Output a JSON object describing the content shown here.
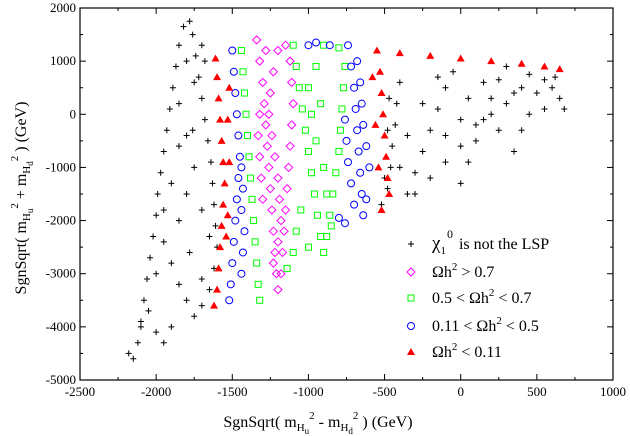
{
  "chart_data": {
    "type": "scatter",
    "title": "",
    "xlabel": {
      "prefix": "SgnSqrt( m",
      "sub1": "H",
      "subsub1": "u",
      "sup1": "2",
      "mid": " - m",
      "sub2": "H",
      "subsub2": "d",
      "sup2": "2",
      "suffix": " ) (GeV)"
    },
    "ylabel": {
      "prefix": "SgnSqrt( m",
      "sub1": "H",
      "subsub1": "u",
      "sup1": "2",
      "mid": " + m",
      "sub2": "H",
      "subsub2": "d",
      "sup2": "2",
      "suffix": " ) (GeV)"
    },
    "xlim": [
      -2500,
      1000
    ],
    "ylim": [
      -5000,
      2000
    ],
    "xticks": [
      -2500,
      -2000,
      -1500,
      -1000,
      -500,
      0,
      500,
      1000
    ],
    "yticks": [
      -5000,
      -4000,
      -3000,
      -2000,
      -1000,
      0,
      1000,
      2000
    ],
    "grid": false,
    "legend_position": "bottom-right",
    "series": [
      {
        "label": "χ₁⁰ is not the LSP",
        "label_parts": {
          "chi": "χ",
          "sub": "1",
          "sup": "0",
          "rest": " is not the LSP"
        },
        "marker": "plus",
        "color": "#000000",
        "region": "outer regions: upper-left wedge (x from about -2200 to -1600) and right region (x from about -550 to 700)",
        "points": [
          [
            -2150,
            -4600
          ],
          [
            -2120,
            -4300
          ],
          [
            -2100,
            -3900
          ],
          [
            -2080,
            -3500
          ],
          [
            -2060,
            -3100
          ],
          [
            -2040,
            -2700
          ],
          [
            -2020,
            -2300
          ],
          [
            -2000,
            -1900
          ],
          [
            -1990,
            -1500
          ],
          [
            -1970,
            -1100
          ],
          [
            -1950,
            -700
          ],
          [
            -1930,
            -300
          ],
          [
            -1910,
            100
          ],
          [
            -1890,
            500
          ],
          [
            -1870,
            900
          ],
          [
            -1850,
            1300
          ],
          [
            -1820,
            1650
          ],
          [
            -1780,
            1750
          ],
          [
            -1760,
            1500
          ],
          [
            -1740,
            1100
          ],
          [
            -1720,
            700
          ],
          [
            -1700,
            300
          ],
          [
            -1680,
            -100
          ],
          [
            -1660,
            -500
          ],
          [
            -1640,
            -900
          ],
          [
            -1630,
            -1300
          ],
          [
            -1620,
            -1700
          ],
          [
            -1610,
            -2100
          ],
          [
            -1600,
            -2500
          ],
          [
            -1620,
            -2900
          ],
          [
            -1650,
            -3300
          ],
          [
            -1700,
            -3600
          ],
          [
            -1750,
            -3800
          ],
          [
            -1800,
            -3500
          ],
          [
            -1850,
            -3200
          ],
          [
            -1900,
            -2800
          ],
          [
            -1950,
            -2400
          ],
          [
            -2000,
            -3000
          ],
          [
            -2050,
            -3700
          ],
          [
            -1900,
            -4000
          ],
          [
            -1950,
            -4300
          ],
          [
            -2000,
            -4100
          ],
          [
            -1850,
            -2000
          ],
          [
            -1800,
            -1500
          ],
          [
            -1750,
            -1000
          ],
          [
            -1800,
            -400
          ],
          [
            -1850,
            200
          ],
          [
            -1750,
            600
          ],
          [
            -1700,
            1300
          ],
          [
            -1850,
            -600
          ],
          [
            -1900,
            -1300
          ],
          [
            -1950,
            -1800
          ],
          [
            -1700,
            -1800
          ],
          [
            -1650,
            -2300
          ],
          [
            -1700,
            -3100
          ],
          [
            -1780,
            -2600
          ],
          [
            -2100,
            -4000
          ],
          [
            -2180,
            -4500
          ],
          [
            -1760,
            -300
          ],
          [
            -1680,
            1000
          ],
          [
            -1800,
            1000
          ],
          [
            -520,
            -1700
          ],
          [
            -480,
            -1400
          ],
          [
            -460,
            -1000
          ],
          [
            -450,
            -600
          ],
          [
            -430,
            -200
          ],
          [
            -420,
            200
          ],
          [
            -400,
            600
          ],
          [
            -350,
            -1500
          ],
          [
            -300,
            -1100
          ],
          [
            -250,
            -700
          ],
          [
            -200,
            -300
          ],
          [
            -150,
            100
          ],
          [
            -100,
            500
          ],
          [
            -50,
            800
          ],
          [
            0,
            -1300
          ],
          [
            50,
            -900
          ],
          [
            100,
            -500
          ],
          [
            150,
            -100
          ],
          [
            200,
            300
          ],
          [
            250,
            650
          ],
          [
            300,
            900
          ],
          [
            350,
            -700
          ],
          [
            400,
            -300
          ],
          [
            450,
            0
          ],
          [
            500,
            400
          ],
          [
            550,
            650
          ],
          [
            600,
            500
          ],
          [
            650,
            300
          ],
          [
            680,
            100
          ],
          [
            -300,
            -1500
          ],
          [
            -200,
            -1200
          ],
          [
            -100,
            -900
          ],
          [
            0,
            -600
          ],
          [
            100,
            -200
          ],
          [
            200,
            0
          ],
          [
            300,
            200
          ],
          [
            400,
            500
          ],
          [
            -400,
            -1000
          ],
          [
            -350,
            -400
          ],
          [
            -250,
            200
          ],
          [
            -150,
            700
          ],
          [
            50,
            300
          ],
          [
            150,
            600
          ],
          [
            350,
            400
          ],
          [
            450,
            750
          ],
          [
            -500,
            -1200
          ],
          [
            -480,
            -300
          ],
          [
            -470,
            300
          ],
          [
            -100,
            -400
          ],
          [
            0,
            -100
          ],
          [
            250,
            -300
          ],
          [
            550,
            100
          ],
          [
            620,
            700
          ]
        ]
      },
      {
        "label": "Ωh² > 0.7",
        "label_parts": {
          "main": "Ωh",
          "sup": "2",
          "rest": " > 0.7"
        },
        "marker": "diamond",
        "color": "#ff00ff",
        "region": "band x from about -1350 to -1100",
        "points": [
          [
            -1340,
            1400
          ],
          [
            -1320,
            1000
          ],
          [
            -1300,
            600
          ],
          [
            -1290,
            200
          ],
          [
            -1280,
            -200
          ],
          [
            -1270,
            -600
          ],
          [
            -1260,
            -1000
          ],
          [
            -1250,
            -1400
          ],
          [
            -1240,
            -1800
          ],
          [
            -1230,
            -2200
          ],
          [
            -1220,
            -2600
          ],
          [
            -1210,
            -3000
          ],
          [
            -1200,
            -3300
          ],
          [
            -1180,
            -3000
          ],
          [
            -1170,
            -2600
          ],
          [
            -1160,
            -2200
          ],
          [
            -1150,
            -1800
          ],
          [
            -1140,
            -1400
          ],
          [
            -1130,
            -1000
          ],
          [
            -1120,
            -600
          ],
          [
            -1110,
            -200
          ],
          [
            -1100,
            200
          ],
          [
            -1110,
            600
          ],
          [
            -1120,
            1000
          ],
          [
            -1150,
            1300
          ],
          [
            -1200,
            1200
          ],
          [
            -1230,
            800
          ],
          [
            -1250,
            400
          ],
          [
            -1260,
            0
          ],
          [
            -1240,
            -400
          ],
          [
            -1220,
            -800
          ],
          [
            -1200,
            -1200
          ],
          [
            -1190,
            -1600
          ],
          [
            -1180,
            -2000
          ],
          [
            -1200,
            -2400
          ],
          [
            -1230,
            -2800
          ],
          [
            -1300,
            -1600
          ],
          [
            -1310,
            -1200
          ],
          [
            -1320,
            -800
          ],
          [
            -1330,
            -400
          ],
          [
            -1320,
            0
          ],
          [
            -1280,
            1200
          ]
        ]
      },
      {
        "label": "0.5 < Ωh² < 0.7",
        "label_parts": {
          "pre": "0.5 < Ωh",
          "sup": "2",
          "rest": " < 0.7"
        },
        "marker": "square",
        "color": "#00ff00",
        "region": "band x from about -1450 to -750 around the magenta band",
        "points": [
          [
            -1440,
            1200
          ],
          [
            -1430,
            800
          ],
          [
            -1420,
            400
          ],
          [
            -1410,
            0
          ],
          [
            -1400,
            -400
          ],
          [
            -1390,
            -800
          ],
          [
            -1380,
            -1200
          ],
          [
            -1370,
            -1600
          ],
          [
            -1360,
            -2000
          ],
          [
            -1350,
            -2400
          ],
          [
            -1340,
            -2800
          ],
          [
            -1330,
            -3200
          ],
          [
            -1320,
            -3500
          ],
          [
            -1100,
            1300
          ],
          [
            -1080,
            900
          ],
          [
            -1060,
            500
          ],
          [
            -1040,
            100
          ],
          [
            -1020,
            -300
          ],
          [
            -1000,
            -700
          ],
          [
            -980,
            -1100
          ],
          [
            -960,
            -1500
          ],
          [
            -940,
            -1900
          ],
          [
            -920,
            -2300
          ],
          [
            -900,
            -2600
          ],
          [
            -880,
            -2300
          ],
          [
            -860,
            -1900
          ],
          [
            -840,
            -1500
          ],
          [
            -820,
            -1100
          ],
          [
            -800,
            -700
          ],
          [
            -790,
            -300
          ],
          [
            -780,
            100
          ],
          [
            -770,
            500
          ],
          [
            -760,
            900
          ],
          [
            -800,
            1250
          ],
          [
            -900,
            1300
          ],
          [
            -950,
            900
          ],
          [
            -1000,
            500
          ],
          [
            -980,
            0
          ],
          [
            -950,
            -500
          ],
          [
            -900,
            -1000
          ],
          [
            -880,
            -1500
          ],
          [
            -1050,
            -1800
          ],
          [
            -1080,
            -2200
          ],
          [
            -1100,
            -2600
          ],
          [
            -1140,
            -2900
          ],
          [
            -1000,
            -2500
          ],
          [
            -850,
            -2100
          ],
          [
            -920,
            200
          ]
        ]
      },
      {
        "label": "0.11 < Ωh² < 0.5",
        "label_parts": {
          "pre": "0.11 < Ωh",
          "sup": "2",
          "rest": " < 0.5"
        },
        "marker": "circle",
        "color": "#0000ff",
        "region": "band x from about -1550 to -1400 and x from about -750 to -550",
        "points": [
          [
            -1500,
            1200
          ],
          [
            -1490,
            800
          ],
          [
            -1480,
            400
          ],
          [
            -1470,
            0
          ],
          [
            -1460,
            -400
          ],
          [
            -1450,
            -800
          ],
          [
            -1460,
            -1200
          ],
          [
            -1470,
            -1600
          ],
          [
            -1480,
            -2000
          ],
          [
            -1490,
            -2400
          ],
          [
            -1500,
            -2800
          ],
          [
            -1510,
            -3200
          ],
          [
            -1520,
            -3500
          ],
          [
            -1420,
            -2200
          ],
          [
            -1430,
            -2600
          ],
          [
            -1440,
            -3000
          ],
          [
            -1440,
            -1800
          ],
          [
            -1430,
            -1400
          ],
          [
            -1440,
            -1000
          ],
          [
            -740,
            1300
          ],
          [
            -720,
            900
          ],
          [
            -700,
            500
          ],
          [
            -690,
            100
          ],
          [
            -680,
            -300
          ],
          [
            -670,
            -700
          ],
          [
            -660,
            -1100
          ],
          [
            -650,
            -1500
          ],
          [
            -640,
            -1900
          ],
          [
            -700,
            -1700
          ],
          [
            -720,
            -1300
          ],
          [
            -740,
            -900
          ],
          [
            -750,
            -500
          ],
          [
            -760,
            -100
          ],
          [
            -600,
            -1000
          ],
          [
            -620,
            -600
          ],
          [
            -640,
            -200
          ],
          [
            -650,
            200
          ],
          [
            -660,
            600
          ],
          [
            -680,
            1000
          ],
          [
            -620,
            -1600
          ],
          [
            -1000,
            1300
          ],
          [
            -950,
            1350
          ],
          [
            -860,
            1300
          ],
          [
            -800,
            -1950
          ],
          [
            -760,
            -2050
          ]
        ]
      },
      {
        "label": "Ωh² < 0.11",
        "label_parts": {
          "main": "Ωh",
          "sup": "2",
          "rest": " < 0.11"
        },
        "marker": "triangle",
        "color": "#ff0000",
        "region": "boundary bands: x about -1650 to -1500 and x about -560 to -470, plus along the top edge",
        "points": [
          [
            -1610,
            1050
          ],
          [
            -1600,
            700
          ],
          [
            -1590,
            300
          ],
          [
            -1580,
            -100
          ],
          [
            -1570,
            -500
          ],
          [
            -1560,
            -900
          ],
          [
            -1550,
            -1300
          ],
          [
            -1560,
            -1700
          ],
          [
            -1570,
            -2100
          ],
          [
            -1580,
            -2500
          ],
          [
            -1590,
            -2900
          ],
          [
            -1600,
            -3300
          ],
          [
            -1620,
            -3600
          ],
          [
            -1540,
            -2300
          ],
          [
            -1530,
            -1900
          ],
          [
            -1520,
            -900
          ],
          [
            -1530,
            -100
          ],
          [
            -1520,
            500
          ],
          [
            -550,
            1200
          ],
          [
            -530,
            800
          ],
          [
            -520,
            400
          ],
          [
            -510,
            0
          ],
          [
            -500,
            -400
          ],
          [
            -490,
            -800
          ],
          [
            -480,
            -1200
          ],
          [
            -470,
            -1500
          ],
          [
            -520,
            -1800
          ],
          [
            -540,
            -1000
          ],
          [
            -560,
            -200
          ],
          [
            -580,
            700
          ],
          [
            -400,
            1150
          ],
          [
            -200,
            1100
          ],
          [
            0,
            1050
          ],
          [
            200,
            1000
          ],
          [
            400,
            950
          ],
          [
            550,
            900
          ],
          [
            650,
            850
          ]
        ]
      }
    ]
  }
}
